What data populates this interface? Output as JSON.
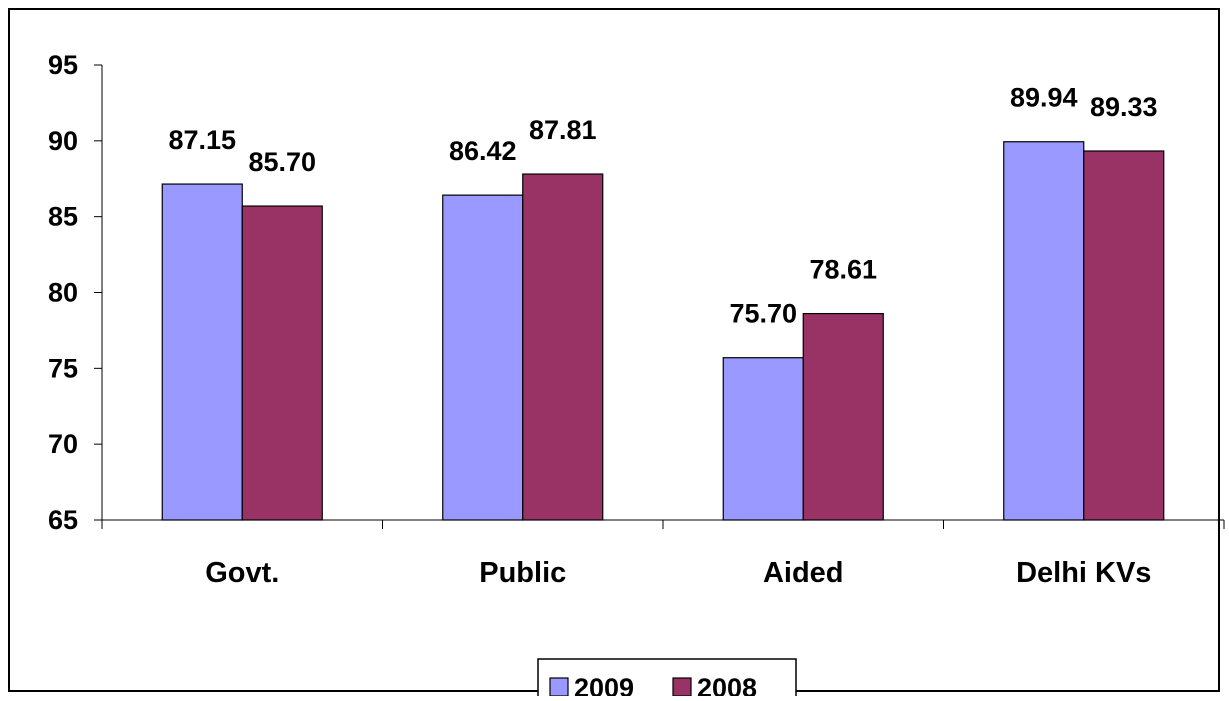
{
  "chart_data": {
    "type": "bar",
    "categories": [
      "Govt.",
      "Public",
      "Aided",
      "Delhi KVs"
    ],
    "series": [
      {
        "name": "2009",
        "values": [
          87.15,
          86.42,
          75.7,
          89.94
        ],
        "labels": [
          "87.15",
          "86.42",
          "75.70",
          "89.94"
        ],
        "color": "#9999FF"
      },
      {
        "name": "2008",
        "values": [
          85.7,
          87.81,
          78.61,
          89.33
        ],
        "labels": [
          "85.70",
          "87.81",
          "78.61",
          "89.33"
        ],
        "color": "#993366"
      }
    ],
    "ylim": [
      65,
      95
    ],
    "yticks": [
      "95",
      "90",
      "85",
      "80",
      "75",
      "70",
      "65"
    ],
    "title": "",
    "xlabel": "",
    "ylabel": "",
    "grid": false,
    "legend_position": "bottom"
  }
}
